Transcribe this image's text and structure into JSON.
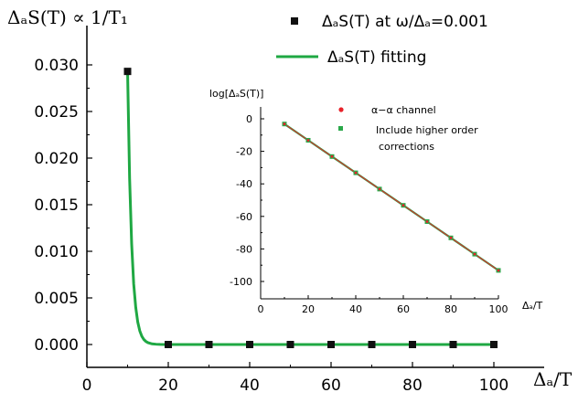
{
  "chart_data": [
    {
      "type": "line",
      "ylabel": "ΔₐS(T) ∝ 1/T₁",
      "xlabel": "Δₐ/T",
      "xlim": [
        0,
        100
      ],
      "ylim": [
        0.0,
        0.03
      ],
      "x_ticks": [
        "0",
        "20",
        "40",
        "60",
        "80",
        "100"
      ],
      "y_ticks": [
        "0.000",
        "0.005",
        "0.010",
        "0.015",
        "0.020",
        "0.025",
        "0.030"
      ],
      "legend_position": "top-right",
      "series": [
        {
          "name": "ΔₐS(T) at ω/Δₐ=0.001",
          "style": "square-markers",
          "color": "#111111",
          "x": [
            10,
            20,
            30,
            40,
            50,
            60,
            70,
            80,
            90,
            100
          ],
          "y": [
            0.0293,
            0.0,
            0.0,
            0.0,
            0.0,
            0.0,
            0.0,
            0.0,
            0.0,
            0.0
          ]
        },
        {
          "name": "ΔₐS(T) fitting",
          "style": "line",
          "color": "#1fa843",
          "x": [
            10,
            10.5,
            11,
            11.5,
            12,
            12.5,
            13,
            13.5,
            14,
            14.5,
            15,
            16,
            17,
            18,
            19,
            20,
            30,
            40,
            50,
            60,
            70,
            80,
            90,
            100
          ],
          "y": [
            0.0293,
            0.0178,
            0.0108,
            0.0065,
            0.004,
            0.0024,
            0.00146,
            0.00089,
            0.00054,
            0.00033,
            0.0002,
            7e-05,
            3e-05,
            1e-05,
            0.0,
            0.0,
            0.0,
            0.0,
            0.0,
            0.0,
            0.0,
            0.0,
            0.0,
            0.0
          ]
        }
      ]
    },
    {
      "type": "line",
      "ylabel": "log[ΔₐS(T)]",
      "xlabel": "Δₐ/T",
      "xlim": [
        0,
        100
      ],
      "ylim": [
        -100,
        10
      ],
      "x_ticks": [
        "0",
        "20",
        "40",
        "60",
        "80",
        "100"
      ],
      "y_ticks": [
        "0",
        "-20",
        "-40",
        "-60",
        "-80",
        "-100"
      ],
      "legend_position": "top-right",
      "series": [
        {
          "name": "α−α channel",
          "style": "line-with-dots",
          "color": "#e8222a",
          "x": [
            10,
            20,
            30,
            40,
            50,
            60,
            70,
            80,
            90,
            100
          ],
          "y": [
            -3.2,
            -13.2,
            -23.2,
            -33.2,
            -43.2,
            -53.2,
            -63.2,
            -73.2,
            -83.2,
            -93.2
          ]
        },
        {
          "name": "Include higher order corrections",
          "style": "line-with-squares",
          "color": "#2aa84a",
          "x": [
            10,
            20,
            30,
            40,
            50,
            60,
            70,
            80,
            90,
            100
          ],
          "y": [
            -3.2,
            -13.2,
            -23.2,
            -33.2,
            -43.2,
            -53.2,
            -63.2,
            -73.2,
            -83.2,
            -93.2
          ]
        }
      ]
    }
  ]
}
